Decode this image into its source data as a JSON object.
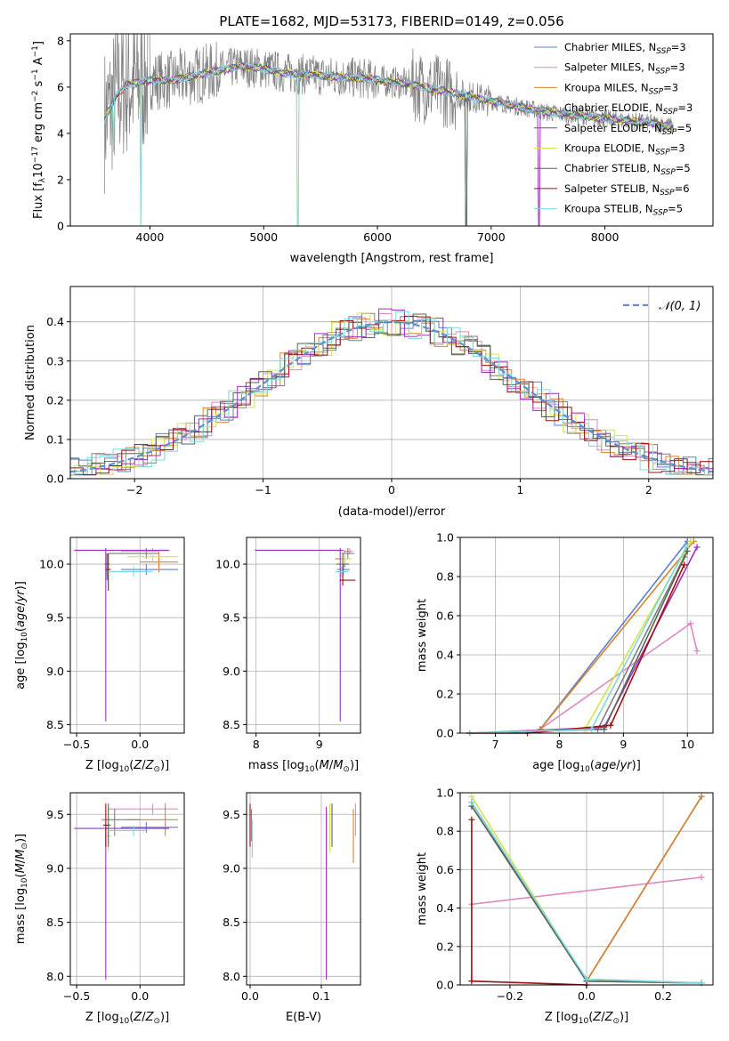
{
  "figure": {
    "title": "PLATE=1682, MJD=53173, FIBERID=0149, z=0.056"
  },
  "colors": {
    "Chabrier MILES": "#5b7fd1",
    "Salpeter MILES": "#e088c0",
    "Kroupa MILES": "#d9822b",
    "Chabrier ELODIE": "#7f7f7f",
    "Salpeter ELODIE": "#9b30c0",
    "Kroupa ELODIE": "#d4e34a",
    "Chabrier STELIB": "#556655",
    "Salpeter STELIB": "#a01010",
    "Kroupa STELIB": "#7ad8dc"
  },
  "chart_data": [
    {
      "type": "line",
      "panel": "spectrum",
      "title": "PLATE=1682, MJD=53173, FIBERID=0149, z=0.056",
      "xlabel": "wavelength [Angstrom, rest frame]",
      "ylabel": "Flux [f_λ 10^-17 erg cm^-2 s^-1 A^-1]",
      "xlim": [
        3300,
        8950
      ],
      "ylim": [
        0,
        8.3
      ],
      "xticks": [
        4000,
        5000,
        6000,
        7000,
        8000
      ],
      "yticks": [
        0,
        2,
        4,
        6,
        8
      ],
      "legend_position": "top-right",
      "series": [
        {
          "name": "Chabrier MILES, N_SSP=3",
          "base": "Chabrier MILES",
          "nssp": "3"
        },
        {
          "name": "Salpeter MILES, N_SSP=3",
          "base": "Salpeter MILES",
          "nssp": "3"
        },
        {
          "name": "Kroupa MILES, N_SSP=3",
          "base": "Kroupa MILES",
          "nssp": "3"
        },
        {
          "name": "Chabrier ELODIE, N_SSP=3",
          "base": "Chabrier ELODIE",
          "nssp": "3"
        },
        {
          "name": "Salpeter ELODIE, N_SSP=5",
          "base": "Salpeter ELODIE",
          "nssp": "5"
        },
        {
          "name": "Kroupa ELODIE, N_SSP=3",
          "base": "Kroupa ELODIE",
          "nssp": "3"
        },
        {
          "name": "Chabrier STELIB, N_SSP=5",
          "base": "Chabrier STELIB",
          "nssp": "5"
        },
        {
          "name": "Salpeter STELIB, N_SSP=6",
          "base": "Salpeter STELIB",
          "nssp": "6"
        },
        {
          "name": "Kroupa STELIB, N_SSP=5",
          "base": "Kroupa STELIB",
          "nssp": "5"
        }
      ],
      "continuum": [
        [
          3600,
          4.6
        ],
        [
          3700,
          5.6
        ],
        [
          3800,
          6.1
        ],
        [
          3900,
          6.2
        ],
        [
          4000,
          6.3
        ],
        [
          4200,
          6.3
        ],
        [
          4500,
          6.6
        ],
        [
          4800,
          6.9
        ],
        [
          5000,
          6.8
        ],
        [
          5200,
          6.6
        ],
        [
          5500,
          6.5
        ],
        [
          5800,
          6.4
        ],
        [
          6000,
          6.3
        ],
        [
          6300,
          6.1
        ],
        [
          6500,
          5.9
        ],
        [
          6700,
          5.7
        ],
        [
          7000,
          5.4
        ],
        [
          7300,
          5.1
        ],
        [
          7500,
          4.9
        ],
        [
          7800,
          4.75
        ],
        [
          8100,
          4.6
        ],
        [
          8400,
          4.45
        ],
        [
          8600,
          4.3
        ]
      ],
      "dips": [
        [
          3920,
          0.0
        ],
        [
          5300,
          0.0
        ],
        [
          6780,
          0.0
        ],
        [
          7420,
          0.0
        ],
        [
          3680,
          3.2
        ]
      ]
    },
    {
      "type": "line",
      "panel": "residual-histogram",
      "xlabel": "(data-model)/error",
      "ylabel": "Normed distribution",
      "xlim": [
        -2.5,
        2.5
      ],
      "ylim": [
        0,
        0.49
      ],
      "xticks": [
        -2,
        -1,
        0,
        1,
        2
      ],
      "yticks": [
        0.0,
        0.1,
        0.2,
        0.3,
        0.4
      ],
      "legend_position": "top-right",
      "legend_label": "𝒩(0, 1)",
      "gaussian": {
        "mean": 0,
        "sigma": 1
      }
    },
    {
      "type": "scatter",
      "panel": "age-vs-Z",
      "xlabel": "Z [log10(Z/Z⊙)]",
      "ylabel": "age  [log10(age/yr)]",
      "xlim": [
        -0.55,
        0.35
      ],
      "ylim": [
        8.42,
        10.25
      ],
      "xticks": [
        -0.5,
        0.0
      ],
      "yticks": [
        8.5,
        9.0,
        9.5,
        10.0
      ],
      "points": [
        {
          "m": "Chabrier MILES",
          "x": 0.05,
          "xe": [
            0.2,
            0.25
          ],
          "y": 9.95,
          "ye": [
            0.05,
            0.05
          ]
        },
        {
          "m": "Salpeter MILES",
          "x": 0.1,
          "xe": [
            0.25,
            0.05
          ],
          "y": 10.12,
          "ye": [
            0.03,
            0.03
          ]
        },
        {
          "m": "Kroupa MILES",
          "x": 0.15,
          "xe": [
            0.15,
            0.15
          ],
          "y": 10.02,
          "ye": [
            0.1,
            0.1
          ]
        },
        {
          "m": "Chabrier ELODIE",
          "x": 0.05,
          "xe": [
            0.3,
            0.1
          ],
          "y": 10.1,
          "ye": [
            0.05,
            0.05
          ]
        },
        {
          "m": "Salpeter ELODIE",
          "x": -0.27,
          "xe": [
            0.25,
            0.5
          ],
          "y": 10.13,
          "ye": [
            1.6,
            0.02
          ]
        },
        {
          "m": "Kroupa ELODIE",
          "x": 0.1,
          "xe": [
            0.2,
            0.2
          ],
          "y": 10.07,
          "ye": [
            0.05,
            0.05
          ]
        },
        {
          "m": "Chabrier STELIB",
          "x": -0.26,
          "xe": [
            0.02,
            0.02
          ],
          "y": 10.0,
          "ye": [
            0.15,
            0.1
          ]
        },
        {
          "m": "Salpeter STELIB",
          "x": -0.25,
          "xe": [
            0.02,
            0.02
          ],
          "y": 9.95,
          "ye": [
            0.2,
            0.15
          ]
        },
        {
          "m": "Kroupa STELIB",
          "x": -0.05,
          "xe": [
            0.2,
            0.15
          ],
          "y": 9.93,
          "ye": [
            0.05,
            0.05
          ]
        }
      ]
    },
    {
      "type": "scatter",
      "panel": "age-vs-mass",
      "xlabel": "mass [log10(M/M⊙)]",
      "ylabel": "",
      "xlim": [
        7.85,
        9.65
      ],
      "ylim": [
        8.42,
        10.25
      ],
      "xticks": [
        8,
        9
      ],
      "yticks": [
        8.5,
        9.0,
        9.5,
        10.0
      ],
      "points": [
        {
          "m": "Chabrier MILES",
          "x": 9.38,
          "xe": [
            0.1,
            0.1
          ],
          "y": 9.95,
          "ye": [
            0.05,
            0.05
          ]
        },
        {
          "m": "Salpeter MILES",
          "x": 9.48,
          "xe": [
            0.1,
            0.05
          ],
          "y": 10.12,
          "ye": [
            0.03,
            0.03
          ]
        },
        {
          "m": "Kroupa MILES",
          "x": 9.4,
          "xe": [
            0.15,
            0.1
          ],
          "y": 10.05,
          "ye": [
            0.08,
            0.08
          ]
        },
        {
          "m": "Chabrier ELODIE",
          "x": 9.45,
          "xe": [
            0.1,
            0.1
          ],
          "y": 10.1,
          "ye": [
            0.05,
            0.05
          ]
        },
        {
          "m": "Salpeter ELODIE",
          "x": 9.33,
          "xe": [
            1.35,
            0.05
          ],
          "y": 10.13,
          "ye": [
            1.6,
            0.02
          ]
        },
        {
          "m": "Kroupa ELODIE",
          "x": 9.4,
          "xe": [
            0.05,
            0.1
          ],
          "y": 10.05,
          "ye": [
            0.05,
            0.05
          ]
        },
        {
          "m": "Chabrier STELIB",
          "x": 9.37,
          "xe": [
            0.1,
            0.1
          ],
          "y": 10.0,
          "ye": [
            0.1,
            0.1
          ]
        },
        {
          "m": "Salpeter STELIB",
          "x": 9.37,
          "xe": [
            0.05,
            0.2
          ],
          "y": 9.85,
          "ye": [
            0.05,
            0.05
          ]
        },
        {
          "m": "Kroupa STELIB",
          "x": 9.35,
          "xe": [
            0.1,
            0.1
          ],
          "y": 9.93,
          "ye": [
            0.05,
            0.05
          ]
        }
      ]
    },
    {
      "type": "line",
      "panel": "mass-weight-vs-age",
      "xlabel": "age  [log10(age/yr)]",
      "ylabel": "mass weight",
      "xlim": [
        6.45,
        10.4
      ],
      "ylim": [
        0,
        1.0
      ],
      "xticks": [
        7,
        8,
        9,
        10
      ],
      "yticks": [
        0.0,
        0.2,
        0.4,
        0.6,
        0.8,
        1.0
      ],
      "series": [
        {
          "m": "Chabrier MILES",
          "points": [
            [
              7.7,
              0.02
            ],
            [
              10.0,
              0.98
            ]
          ]
        },
        {
          "m": "Salpeter MILES",
          "points": [
            [
              7.7,
              0.02
            ],
            [
              10.05,
              0.56
            ],
            [
              10.15,
              0.42
            ]
          ]
        },
        {
          "m": "Kroupa MILES",
          "points": [
            [
              7.7,
              0.02
            ],
            [
              10.1,
              0.98
            ]
          ]
        },
        {
          "m": "Chabrier ELODIE",
          "points": [
            [
              6.6,
              0.0
            ],
            [
              8.6,
              0.02
            ],
            [
              9.95,
              0.9
            ]
          ]
        },
        {
          "m": "Salpeter ELODIE",
          "points": [
            [
              6.6,
              0.0
            ],
            [
              8.7,
              0.03
            ],
            [
              10.15,
              0.95
            ]
          ]
        },
        {
          "m": "Kroupa ELODIE",
          "points": [
            [
              6.6,
              0.0
            ],
            [
              8.4,
              0.02
            ],
            [
              10.05,
              0.98
            ]
          ]
        },
        {
          "m": "Chabrier STELIB",
          "points": [
            [
              6.6,
              0.0
            ],
            [
              8.7,
              0.02
            ],
            [
              10.0,
              0.93
            ]
          ]
        },
        {
          "m": "Salpeter STELIB",
          "points": [
            [
              6.6,
              0.0
            ],
            [
              7.5,
              0.0
            ],
            [
              8.8,
              0.04
            ],
            [
              9.95,
              0.86
            ]
          ]
        },
        {
          "m": "Kroupa STELIB",
          "points": [
            [
              6.6,
              0.0
            ],
            [
              8.5,
              0.02
            ],
            [
              9.98,
              0.95
            ]
          ]
        }
      ]
    },
    {
      "type": "scatter",
      "panel": "mass-vs-Z",
      "xlabel": "Z [log10(Z/Z⊙)]",
      "ylabel": "mass [log10(M/M⊙)]",
      "xlim": [
        -0.55,
        0.35
      ],
      "ylim": [
        7.92,
        9.7
      ],
      "xticks": [
        -0.5,
        0.0
      ],
      "yticks": [
        8.0,
        8.5,
        9.0,
        9.5
      ],
      "points": [
        {
          "m": "Chabrier MILES",
          "x": 0.05,
          "xe": [
            0.2,
            0.25
          ],
          "y": 9.38,
          "ye": [
            0.05,
            0.05
          ]
        },
        {
          "m": "Salpeter MILES",
          "x": 0.1,
          "xe": [
            0.35,
            0.2
          ],
          "y": 9.55,
          "ye": [
            0.05,
            0.05
          ]
        },
        {
          "m": "Kroupa MILES",
          "x": 0.2,
          "xe": [
            0.3,
            0.1
          ],
          "y": 9.45,
          "ye": [
            0.15,
            0.15
          ]
        },
        {
          "m": "Chabrier ELODIE",
          "x": -0.2,
          "xe": [
            0.1,
            0.2
          ],
          "y": 9.45,
          "ye": [
            0.15,
            0.1
          ]
        },
        {
          "m": "Salpeter ELODIE",
          "x": -0.27,
          "xe": [
            0.25,
            0.5
          ],
          "y": 9.37,
          "ye": [
            1.4,
            0.02
          ]
        },
        {
          "m": "Kroupa ELODIE",
          "x": -0.25,
          "xe": [
            0.02,
            0.02
          ],
          "y": 9.3,
          "ye": [
            0.15,
            0.15
          ]
        },
        {
          "m": "Chabrier STELIB",
          "x": -0.25,
          "xe": [
            0.02,
            0.02
          ],
          "y": 9.4,
          "ye": [
            0.2,
            0.2
          ]
        },
        {
          "m": "Salpeter STELIB",
          "x": -0.27,
          "xe": [
            0.02,
            0.02
          ],
          "y": 9.4,
          "ye": [
            0.2,
            0.2
          ]
        },
        {
          "m": "Kroupa STELIB",
          "x": -0.05,
          "xe": [
            0.2,
            0.1
          ],
          "y": 9.35,
          "ye": [
            0.05,
            0.05
          ]
        }
      ]
    },
    {
      "type": "scatter",
      "panel": "mass-vs-EBV",
      "xlabel": "E(B-V)",
      "ylabel": "",
      "xlim": [
        -0.005,
        0.155
      ],
      "ylim": [
        7.92,
        9.7
      ],
      "xticks": [
        0.0,
        0.1
      ],
      "yticks": [
        8.0,
        8.5,
        9.0,
        9.5
      ],
      "points": [
        {
          "m": "Chabrier MILES",
          "x": 0.0,
          "y": 9.4,
          "ye": [
            0.15,
            0.15
          ]
        },
        {
          "m": "Salpeter MILES",
          "x": 0.148,
          "y": 9.45,
          "ye": [
            0.15,
            0.15
          ]
        },
        {
          "m": "Kroupa MILES",
          "x": 0.145,
          "y": 9.3,
          "ye": [
            0.25,
            0.25
          ]
        },
        {
          "m": "Chabrier ELODIE",
          "x": 0.002,
          "y": 9.4,
          "ye": [
            0.15,
            0.15
          ]
        },
        {
          "m": "Salpeter ELODIE",
          "x": 0.107,
          "y": 9.37,
          "ye": [
            1.4,
            0.2
          ]
        },
        {
          "m": "Kroupa ELODIE",
          "x": 0.112,
          "y": 9.4,
          "ye": [
            0.25,
            0.2
          ]
        },
        {
          "m": "Chabrier STELIB",
          "x": 0.115,
          "y": 9.4,
          "ye": [
            0.2,
            0.2
          ]
        },
        {
          "m": "Salpeter STELIB",
          "x": 0.0,
          "y": 9.4,
          "ye": [
            0.2,
            0.2
          ]
        },
        {
          "m": "Kroupa STELIB",
          "x": 0.003,
          "y": 9.3,
          "ye": [
            0.2,
            0.15
          ]
        }
      ]
    },
    {
      "type": "line",
      "panel": "mass-weight-vs-Z",
      "xlabel": "Z [log10(Z/Z⊙)]",
      "ylabel": "mass weight",
      "xlim": [
        -0.33,
        0.33
      ],
      "ylim": [
        0,
        1.0
      ],
      "xticks": [
        -0.2,
        0.0,
        0.2
      ],
      "yticks": [
        0.0,
        0.2,
        0.4,
        0.6,
        0.8,
        1.0
      ],
      "series": [
        {
          "m": "Chabrier MILES",
          "points": [
            [
              0.0,
              0.02
            ],
            [
              0.3,
              0.98
            ]
          ]
        },
        {
          "m": "Salpeter MILES",
          "points": [
            [
              -0.3,
              0.42
            ],
            [
              0.3,
              0.56
            ]
          ]
        },
        {
          "m": "Kroupa MILES",
          "points": [
            [
              0.0,
              0.02
            ],
            [
              0.3,
              0.98
            ]
          ]
        },
        {
          "m": "Chabrier ELODIE",
          "points": [
            [
              -0.3,
              0.93
            ],
            [
              0.0,
              0.03
            ],
            [
              0.3,
              0.01
            ]
          ]
        },
        {
          "m": "Salpeter ELODIE",
          "points": [
            [
              -0.3,
              0.95
            ],
            [
              0.0,
              0.02
            ],
            [
              0.3,
              0.01
            ]
          ]
        },
        {
          "m": "Kroupa ELODIE",
          "points": [
            [
              -0.3,
              0.98
            ],
            [
              0.0,
              0.02
            ],
            [
              0.3,
              0.01
            ]
          ]
        },
        {
          "m": "Chabrier STELIB",
          "points": [
            [
              -0.3,
              0.93
            ],
            [
              0.0,
              0.02
            ],
            [
              0.3,
              0.01
            ]
          ]
        },
        {
          "m": "Salpeter STELIB",
          "points": [
            [
              -0.3,
              0.86
            ],
            [
              -0.3,
              0.02
            ],
            [
              0.0,
              0.0
            ]
          ]
        },
        {
          "m": "Kroupa STELIB",
          "points": [
            [
              -0.3,
              0.95
            ],
            [
              0.0,
              0.03
            ],
            [
              0.3,
              0.01
            ]
          ]
        }
      ]
    }
  ]
}
